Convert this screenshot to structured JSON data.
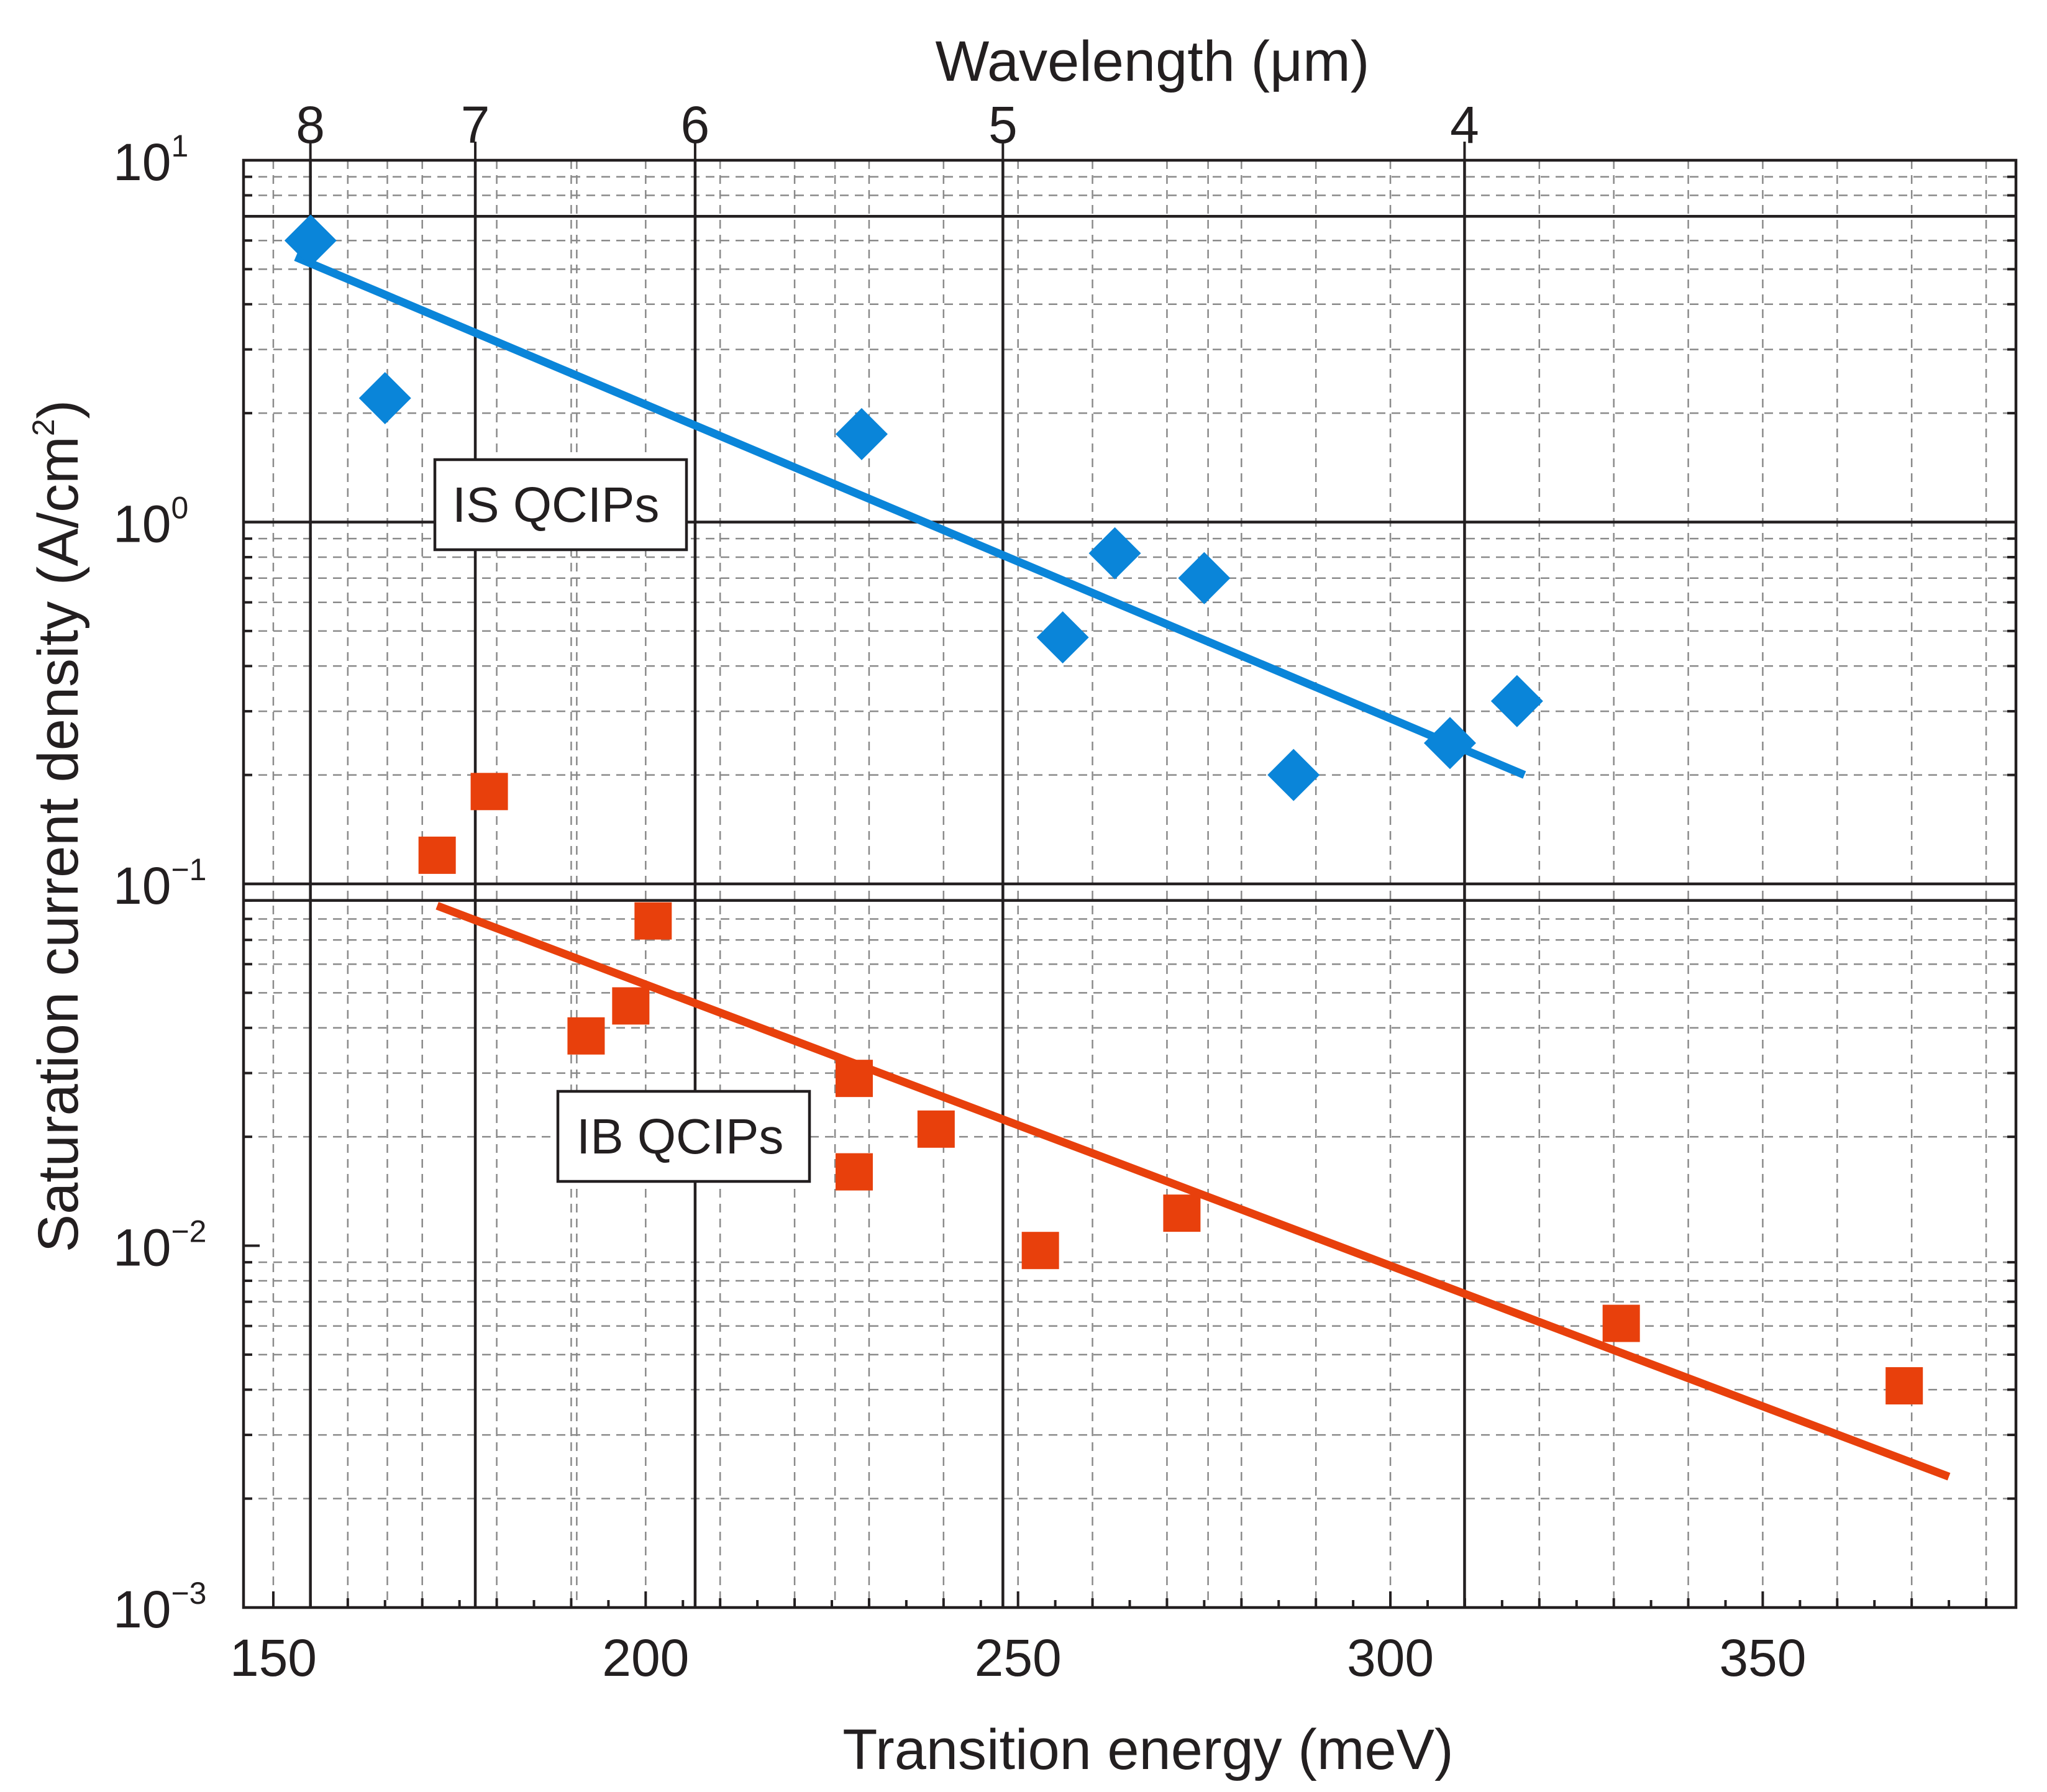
{
  "chart_data": {
    "type": "scatter",
    "xlabel": "Transition energy (meV)",
    "ylabel": "Saturation current density (A/cm",
    "ylabel_superscript": "2",
    "ylabel_close": ")",
    "top_axis_label": "Wavelength (μm)",
    "xlim": [
      146,
      384
    ],
    "ylim_log10": [
      -3,
      1
    ],
    "x_ticks": [
      {
        "value": 150,
        "label": "150"
      },
      {
        "value": 200,
        "label": "200"
      },
      {
        "value": 250,
        "label": "250"
      },
      {
        "value": 300,
        "label": "300"
      },
      {
        "value": 350,
        "label": "350"
      }
    ],
    "y_ticks": [
      {
        "exp": 1,
        "base": "10",
        "sup": "1"
      },
      {
        "exp": 0,
        "base": "10",
        "sup": "0"
      },
      {
        "exp": -1,
        "base": "10",
        "sup": "−1"
      },
      {
        "exp": -2,
        "base": "10",
        "sup": "−2"
      },
      {
        "exp": -3,
        "base": "10",
        "sup": "−3"
      }
    ],
    "top_ticks": [
      {
        "wavelength": 8,
        "label": "8"
      },
      {
        "wavelength": 7,
        "label": "7"
      },
      {
        "wavelength": 6,
        "label": "6"
      },
      {
        "wavelength": 5,
        "label": "5"
      },
      {
        "wavelength": 4,
        "label": "4"
      }
    ],
    "series": [
      {
        "name": "IS QCIPs",
        "color": "#0a85d9",
        "marker": "diamond",
        "x": [
          155,
          165,
          229,
          256,
          263,
          275,
          287,
          308,
          317
        ],
        "y": [
          6.0,
          2.2,
          1.75,
          0.48,
          0.82,
          0.7,
          0.2,
          0.245,
          0.32
        ],
        "fit": {
          "x": [
            153,
            318
          ],
          "y": [
            5.4,
            0.2
          ]
        }
      },
      {
        "name": "IB QCIPs",
        "color": "#e8400c",
        "marker": "square",
        "x": [
          172,
          179,
          192,
          198,
          201,
          228,
          228,
          239,
          253,
          272,
          331,
          369
        ],
        "y": [
          0.12,
          0.18,
          0.038,
          0.046,
          0.079,
          0.029,
          0.016,
          0.021,
          0.0097,
          0.0123,
          0.0061,
          0.0041
        ],
        "fit": {
          "x": [
            172,
            375
          ],
          "y": [
            0.087,
            0.0023
          ]
        }
      }
    ],
    "labels": {
      "is": "IS QCIPs",
      "ib": "IB QCIPs"
    }
  }
}
